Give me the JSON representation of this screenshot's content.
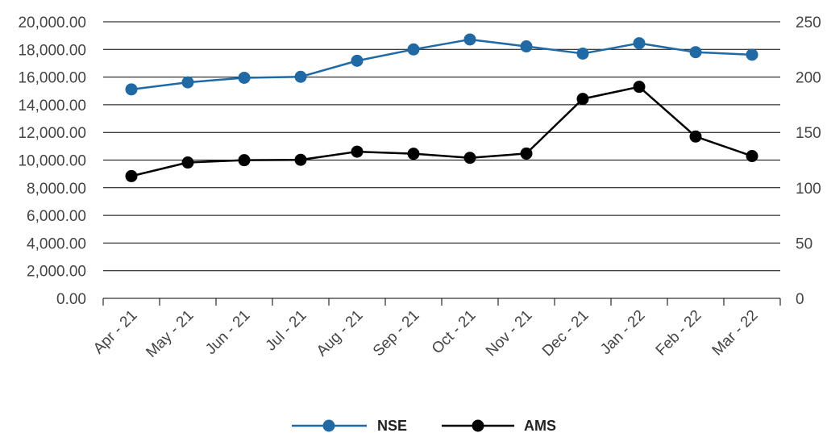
{
  "chart_data": {
    "type": "line",
    "title": "",
    "xlabel": "",
    "ylabel": "",
    "categories": [
      "Apr - 21",
      "May - 21",
      "Jun - 21",
      "Jul - 21",
      "Aug - 21",
      "Sep - 21",
      "Oct - 21",
      "Nov - 21",
      "Dec - 21",
      "Jan - 22",
      "Feb - 22",
      "Mar - 22"
    ],
    "y_left": {
      "ylim": [
        0,
        20000
      ],
      "ticks": [
        0,
        2000,
        4000,
        6000,
        8000,
        10000,
        12000,
        14000,
        16000,
        18000,
        20000
      ],
      "tick_labels": [
        "0.00",
        "2,000.00",
        "4,000.00",
        "6,000.00",
        "8,000.00",
        "10,000.00",
        "12,000.00",
        "14,000.00",
        "16,000.00",
        "18,000.00",
        "20,000.00"
      ]
    },
    "y_right": {
      "ylim": [
        0,
        250
      ],
      "ticks": [
        0,
        50,
        100,
        150,
        200,
        250
      ],
      "tick_labels": [
        "0",
        "50",
        "100",
        "150",
        "200",
        "250"
      ]
    },
    "grid": true,
    "legend_position": "bottom-center",
    "series": [
      {
        "name": "NSE",
        "axis": "left",
        "color": "#1f6aa5",
        "values": [
          15110,
          15620,
          15950,
          16020,
          17180,
          18000,
          18720,
          18220,
          17700,
          18450,
          17800,
          17620
        ]
      },
      {
        "name": "AMS",
        "axis": "right",
        "color": "#000000",
        "values": [
          110.5,
          122.8,
          124.9,
          125.2,
          132.6,
          130.7,
          127.0,
          130.9,
          180.3,
          191.2,
          146.3,
          128.6
        ]
      }
    ]
  }
}
